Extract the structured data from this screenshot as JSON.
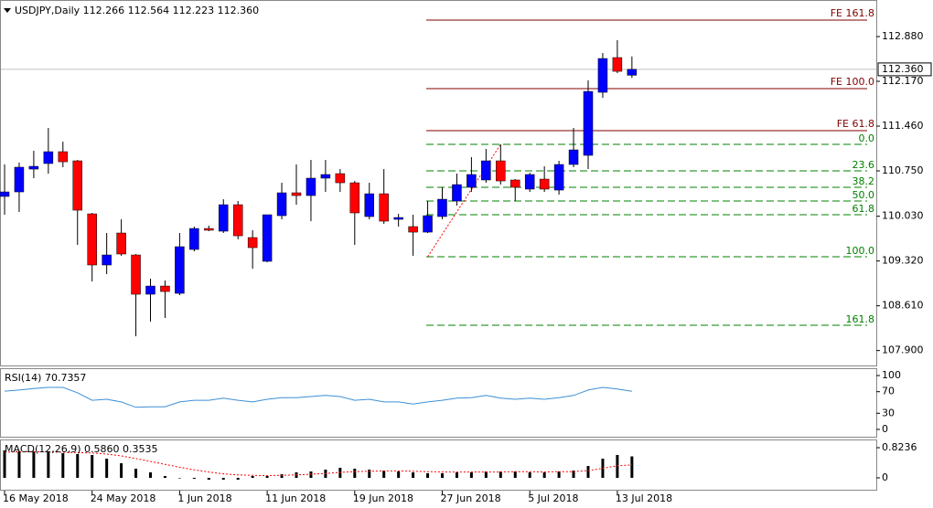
{
  "chart_data": [
    {
      "type": "candlestick",
      "title": "USDJPY,Daily  112.266 112.564 112.223 112.360",
      "categories": [
        "16 May 2018",
        null,
        null,
        null,
        null,
        null,
        "24 May 2018",
        null,
        null,
        null,
        null,
        null,
        "1 Jun 2018",
        null,
        null,
        null,
        null,
        null,
        "11 Jun 2018",
        null,
        null,
        null,
        null,
        null,
        "19 Jun 2018",
        null,
        null,
        null,
        null,
        null,
        "27 Jun 2018",
        null,
        null,
        null,
        null,
        null,
        "5 Jul 2018",
        null,
        null,
        null,
        null,
        null,
        "13 Jul 2018",
        null
      ],
      "open": [
        110.344,
        110.416,
        110.778,
        110.866,
        111.054,
        110.909,
        110.068,
        109.257,
        109.764,
        109.416,
        108.793,
        108.923,
        108.807,
        109.503,
        109.836,
        109.793,
        110.213,
        109.692,
        109.315,
        110.039,
        110.402,
        110.358,
        110.634,
        110.706,
        110.561,
        110.025,
        110.387,
        109.981,
        109.866,
        109.778,
        110.025,
        110.271,
        110.489,
        110.605,
        110.909,
        110.605,
        110.46,
        110.619,
        110.445,
        110.851,
        110.996,
        111.996,
        112.547,
        112.266
      ],
      "high": [
        110.851,
        110.88,
        111.068,
        111.431,
        111.213,
        110.923,
        110.083,
        109.764,
        109.981,
        109.431,
        109.039,
        109.01,
        109.764,
        109.866,
        109.88,
        110.3,
        110.271,
        109.808,
        110.054,
        110.561,
        110.851,
        110.923,
        110.923,
        110.778,
        110.59,
        110.561,
        110.778,
        110.068,
        110.054,
        110.271,
        110.489,
        110.706,
        110.967,
        111.097,
        111.17,
        110.619,
        110.72,
        110.822,
        110.909,
        111.431,
        112.184,
        112.619,
        112.822,
        112.564
      ],
      "low": [
        110.054,
        110.097,
        110.634,
        110.706,
        110.808,
        109.576,
        108.996,
        109.112,
        109.402,
        108.126,
        108.358,
        108.416,
        108.778,
        109.474,
        109.793,
        109.764,
        109.663,
        109.199,
        109.3,
        109.981,
        110.213,
        109.952,
        110.416,
        110.416,
        109.576,
        109.981,
        109.909,
        109.866,
        109.402,
        109.764,
        109.981,
        110.199,
        110.416,
        110.561,
        110.532,
        110.271,
        110.416,
        110.416,
        110.373,
        110.808,
        110.778,
        111.909,
        112.3,
        112.223
      ],
      "close": [
        110.416,
        110.808,
        110.822,
        111.054,
        110.894,
        110.126,
        109.257,
        109.416,
        109.431,
        108.793,
        108.923,
        108.836,
        109.547,
        109.836,
        109.808,
        110.213,
        109.72,
        109.532,
        110.054,
        110.402,
        110.358,
        110.634,
        110.692,
        110.561,
        110.083,
        110.387,
        109.952,
        110.01,
        109.778,
        110.039,
        110.3,
        110.532,
        110.692,
        110.909,
        110.59,
        110.489,
        110.692,
        110.46,
        110.851,
        111.083,
        112.01,
        112.532,
        112.329,
        112.36
      ],
      "up_color": "#0000ff",
      "down_color": "#ff0000",
      "ylim": [
        107.663,
        113.46
      ],
      "yticks": [
        {
          "value": 112.88,
          "label": "112.880"
        },
        {
          "value": 112.17,
          "label": "112.170"
        },
        {
          "value": 111.46,
          "label": "111.460"
        },
        {
          "value": 110.75,
          "label": "110.750"
        },
        {
          "value": 110.03,
          "label": "110.030"
        },
        {
          "value": 109.32,
          "label": "109.320"
        },
        {
          "value": 108.61,
          "label": "108.610"
        },
        {
          "value": 107.9,
          "label": "107.900"
        }
      ],
      "last_price": {
        "value": 112.36,
        "label": "112.360"
      },
      "fib_expansion_color": "#800000",
      "fib_expansion": [
        {
          "label": "FE 161.8",
          "price": 113.141
        },
        {
          "label": "FE 100.0",
          "price": 112.054
        },
        {
          "label": "FE 61.8",
          "price": 111.387
        }
      ],
      "fib_retracement_color": "#008000",
      "fib_retracement": [
        {
          "label": "0.0",
          "price": 111.17
        },
        {
          "label": "23.6",
          "price": 110.75
        },
        {
          "label": "38.2",
          "price": 110.489
        },
        {
          "label": "50.0",
          "price": 110.271
        },
        {
          "label": "61.8",
          "price": 110.054
        },
        {
          "label": "100.0",
          "price": 109.387
        },
        {
          "label": "161.8",
          "price": 108.3
        }
      ]
    },
    {
      "type": "line",
      "title": "RSI(14) 70.7357",
      "values": [
        71,
        73,
        76,
        78,
        78,
        68,
        54,
        56,
        51,
        41,
        42,
        42,
        51,
        54,
        54,
        58,
        54,
        51,
        56,
        59,
        59,
        61,
        63,
        61,
        54,
        56,
        51,
        51,
        47,
        51,
        54,
        58,
        59,
        63,
        58,
        56,
        58,
        56,
        59,
        63,
        73,
        78,
        75,
        70.7
      ],
      "color": "#3d8fd6",
      "ylim": [
        -13.6,
        113.6
      ],
      "yticks": [
        100,
        70,
        30,
        0
      ]
    },
    {
      "type": "macd",
      "title": "MACD(12,26,9) 0.5860 0.3535",
      "values": [
        0.749,
        0.724,
        0.724,
        0.699,
        0.674,
        0.649,
        0.624,
        0.524,
        0.399,
        0.25,
        0.15,
        0.05,
        -0.01,
        -0.025,
        -0.05,
        -0.05,
        -0.05,
        0.05,
        0.05,
        0.1,
        0.15,
        0.175,
        0.225,
        0.275,
        0.25,
        0.225,
        0.2,
        0.175,
        0.15,
        0.125,
        0.125,
        0.15,
        0.15,
        0.175,
        0.175,
        0.175,
        0.15,
        0.15,
        0.175,
        0.2,
        0.324,
        0.524,
        0.624,
        0.586
      ],
      "signal": [
        0.7,
        0.71,
        0.71,
        0.71,
        0.7,
        0.69,
        0.68,
        0.65,
        0.6,
        0.53,
        0.45,
        0.37,
        0.29,
        0.22,
        0.16,
        0.11,
        0.08,
        0.07,
        0.06,
        0.07,
        0.08,
        0.1,
        0.12,
        0.15,
        0.17,
        0.18,
        0.19,
        0.19,
        0.18,
        0.17,
        0.16,
        0.16,
        0.16,
        0.16,
        0.16,
        0.17,
        0.17,
        0.16,
        0.17,
        0.17,
        0.2,
        0.26,
        0.33,
        0.3535
      ],
      "color": "#000000",
      "signal_color": "#ff0000",
      "ylim": [
        -0.324,
        1.048
      ],
      "yticks": [
        0.8236,
        0
      ]
    }
  ]
}
